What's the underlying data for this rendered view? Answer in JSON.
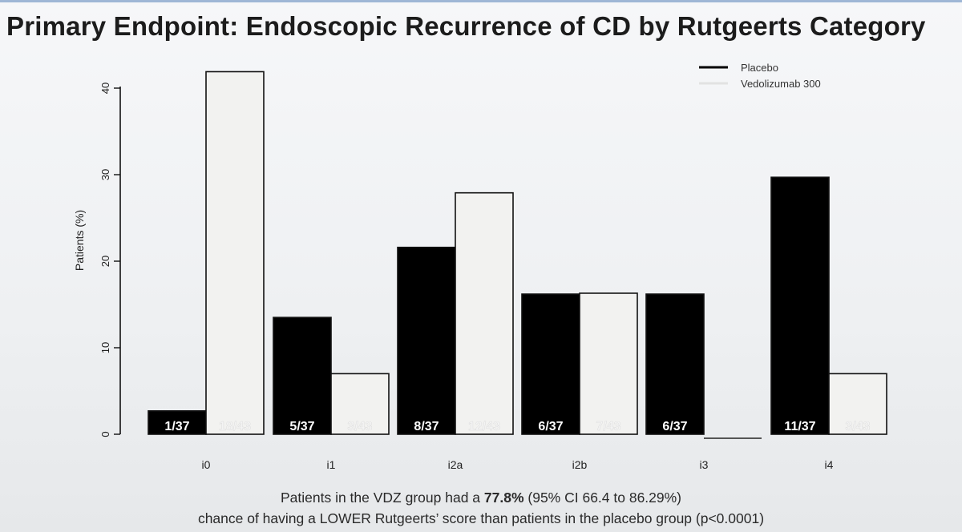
{
  "title": "Primary Endpoint: Endoscopic Recurrence of CD by Rutgeerts Category",
  "footnote": {
    "line1_prefix": "Patients in the VDZ group had a ",
    "line1_bold": "77.8%",
    "line1_suffix": " (95% CI 66.4 to 86.29%)",
    "line2": "chance of having a LOWER Rutgeerts’ score than patients in the placebo group (p<0.0001)"
  },
  "chart_data": {
    "type": "bar",
    "ylabel": "Patients (%)",
    "xlabel": "",
    "ylim": [
      0,
      42
    ],
    "yticks": [
      "0",
      "10",
      "20",
      "30",
      "40"
    ],
    "categories": [
      "i0",
      "i1",
      "i2a",
      "i2b",
      "i3",
      "i4"
    ],
    "legend_position": "top-right",
    "grid": false,
    "series": [
      {
        "name": "Placebo",
        "color": "#000000",
        "values": [
          2.7,
          13.5,
          21.6,
          16.2,
          16.2,
          29.7
        ],
        "labels": [
          "1/37",
          "5/37",
          "8/37",
          "6/37",
          "6/37",
          "11/37"
        ],
        "label_color": "#ffffff"
      },
      {
        "name": "Vedolizumab 300",
        "color": "#f2f2f0",
        "values": [
          41.9,
          7.0,
          27.9,
          16.3,
          0,
          7.0
        ],
        "labels": [
          "18/43",
          "3/43",
          "12/43",
          "7/43",
          "",
          "3/43"
        ],
        "label_color": "#f4f4f4"
      }
    ]
  }
}
